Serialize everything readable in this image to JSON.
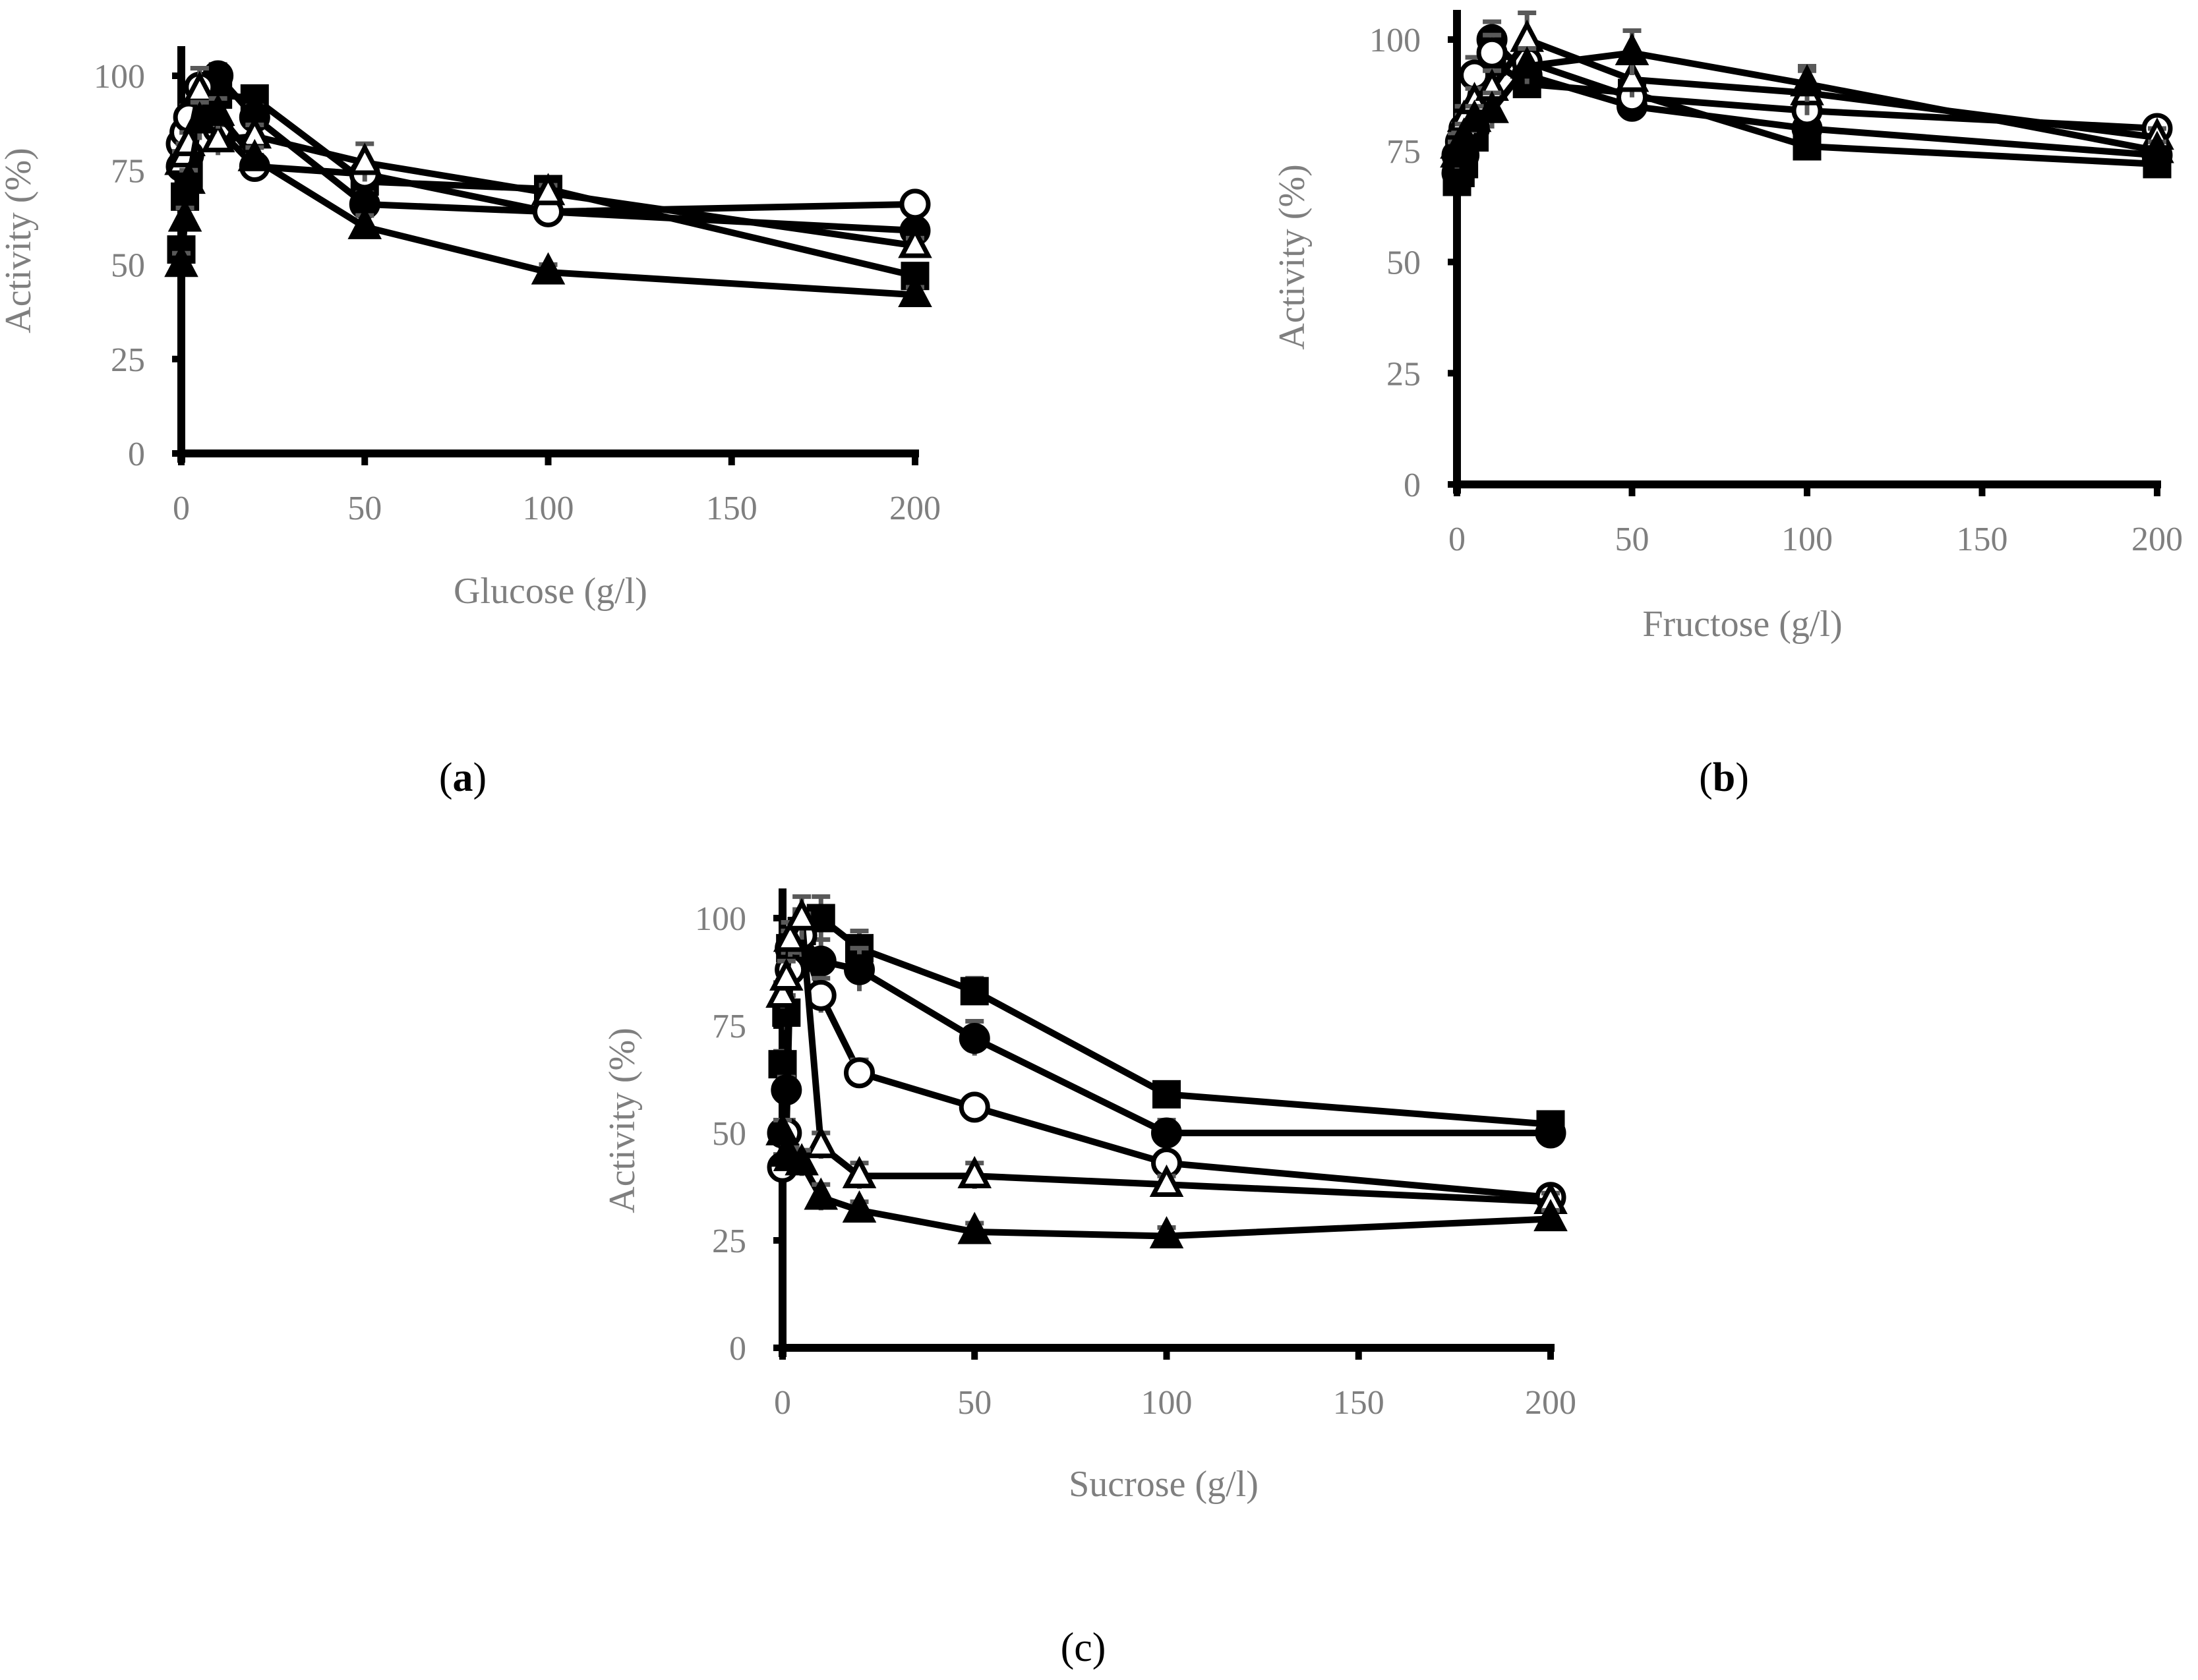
{
  "colors": {
    "axis": "#000000",
    "tick_text": "#7f7f7f",
    "marker": "#000000",
    "error_bar": "#595959",
    "hollow_fill": "#ffffff"
  },
  "chart_data": [
    {
      "id": "a",
      "type": "line",
      "panel_label": "a",
      "xlabel": "Glucose (g/l)",
      "ylabel": "Activity (%)",
      "xlim": [
        0,
        200
      ],
      "ylim": [
        0,
        110
      ],
      "xticks": [
        "0",
        "50",
        "100",
        "150",
        "200"
      ],
      "yticks": [
        "0",
        "25",
        "50",
        "75",
        "100"
      ],
      "x": [
        0,
        1,
        2,
        5,
        10,
        20,
        50,
        100,
        200
      ],
      "series": [
        {
          "name": "filled-square",
          "marker": "square",
          "filled": true,
          "values": [
            54,
            68,
            74,
            90,
            95,
            94,
            72,
            70,
            47
          ],
          "errors": [
            3,
            3,
            3,
            4,
            4,
            3,
            3,
            2,
            2
          ]
        },
        {
          "name": "filled-circle",
          "marker": "circle",
          "filled": true,
          "values": [
            76,
            78,
            79,
            90,
            100,
            89,
            66,
            64,
            59
          ],
          "errors": [
            3,
            3,
            3,
            4,
            3,
            3,
            3,
            2,
            2
          ]
        },
        {
          "name": "open-circle",
          "marker": "circle",
          "filled": false,
          "values": [
            82,
            85,
            89,
            97,
            86,
            76,
            74,
            64,
            66
          ],
          "errors": [
            3,
            3,
            3,
            5,
            4,
            3,
            3,
            2,
            2
          ]
        },
        {
          "name": "open-triangle",
          "marker": "triangle",
          "filled": false,
          "values": [
            77,
            79,
            82,
            96,
            83,
            84,
            77,
            69,
            55
          ],
          "errors": [
            3,
            3,
            3,
            6,
            4,
            3,
            5,
            2,
            2
          ]
        },
        {
          "name": "filled-triangle",
          "marker": "triangle",
          "filled": true,
          "values": [
            50,
            62,
            72,
            88,
            90,
            78,
            60,
            48,
            42
          ],
          "errors": [
            3,
            3,
            3,
            5,
            4,
            3,
            3,
            2,
            2
          ]
        }
      ]
    },
    {
      "id": "b",
      "type": "line",
      "panel_label": "b",
      "xlabel": "Fructose (g/l)",
      "ylabel": "Activity (%)",
      "xlim": [
        0,
        200
      ],
      "ylim": [
        0,
        110
      ],
      "xticks": [
        "0",
        "50",
        "100",
        "150",
        "200"
      ],
      "yticks": [
        "0",
        "25",
        "50",
        "75",
        "100"
      ],
      "x": [
        0,
        1,
        2,
        5,
        10,
        20,
        50,
        100,
        200
      ],
      "series": [
        {
          "name": "filled-square",
          "marker": "square",
          "filled": true,
          "values": [
            68,
            70,
            72,
            78,
            95,
            90,
            88,
            76,
            72
          ],
          "errors": [
            3,
            3,
            3,
            3,
            4,
            3,
            3,
            2,
            2
          ]
        },
        {
          "name": "filled-circle",
          "marker": "circle",
          "filled": true,
          "values": [
            70,
            72,
            74,
            80,
            100,
            92,
            85,
            80,
            74
          ],
          "errors": [
            3,
            3,
            3,
            3,
            4,
            3,
            3,
            2,
            2
          ]
        },
        {
          "name": "open-circle",
          "marker": "circle",
          "filled": false,
          "values": [
            74,
            77,
            80,
            92,
            97,
            95,
            87,
            84,
            80
          ],
          "errors": [
            3,
            3,
            3,
            4,
            4,
            4,
            3,
            3,
            2
          ]
        },
        {
          "name": "open-triangle",
          "marker": "triangle",
          "filled": false,
          "values": [
            76,
            78,
            82,
            86,
            89,
            100,
            91,
            88,
            78
          ],
          "errors": [
            3,
            3,
            3,
            3,
            4,
            6,
            4,
            5,
            2
          ]
        },
        {
          "name": "filled-triangle",
          "marker": "triangle",
          "filled": true,
          "values": [
            74,
            76,
            78,
            82,
            84,
            94,
            97,
            90,
            75
          ],
          "errors": [
            3,
            3,
            3,
            3,
            4,
            4,
            5,
            4,
            2
          ]
        }
      ]
    },
    {
      "id": "c",
      "type": "line",
      "panel_label": "c",
      "xlabel": "Sucrose (g/l)",
      "ylabel": "Activity (%)",
      "xlim": [
        0,
        200
      ],
      "ylim": [
        0,
        110
      ],
      "xticks": [
        "0",
        "50",
        "100",
        "150",
        "200"
      ],
      "yticks": [
        "0",
        "25",
        "50",
        "75",
        "100"
      ],
      "x": [
        0,
        1,
        2,
        5,
        10,
        20,
        50,
        100,
        200
      ],
      "series": [
        {
          "name": "filled-square",
          "marker": "square",
          "filled": true,
          "values": [
            66,
            78,
            93,
            97,
            100,
            93,
            83,
            59,
            52
          ],
          "errors": [
            3,
            4,
            4,
            5,
            5,
            4,
            3,
            2,
            2
          ]
        },
        {
          "name": "filled-circle",
          "marker": "circle",
          "filled": true,
          "values": [
            50,
            60,
            93,
            96,
            90,
            88,
            72,
            50,
            50
          ],
          "errors": [
            3,
            3,
            4,
            5,
            5,
            5,
            4,
            3,
            2
          ]
        },
        {
          "name": "open-circle",
          "marker": "circle",
          "filled": false,
          "values": [
            42,
            50,
            88,
            96,
            82,
            64,
            56,
            43,
            35
          ],
          "errors": [
            3,
            3,
            4,
            5,
            4,
            3,
            2,
            2,
            2
          ]
        },
        {
          "name": "open-triangle",
          "marker": "triangle",
          "filled": false,
          "values": [
            82,
            86,
            95,
            100,
            47,
            40,
            40,
            38,
            34
          ],
          "errors": [
            3,
            4,
            4,
            5,
            3,
            3,
            3,
            2,
            2
          ]
        },
        {
          "name": "filled-triangle",
          "marker": "triangle",
          "filled": true,
          "values": [
            50,
            45,
            44,
            43,
            35,
            32,
            27,
            26,
            30
          ],
          "errors": [
            3,
            3,
            3,
            3,
            3,
            2,
            2,
            2,
            2
          ]
        }
      ]
    }
  ]
}
